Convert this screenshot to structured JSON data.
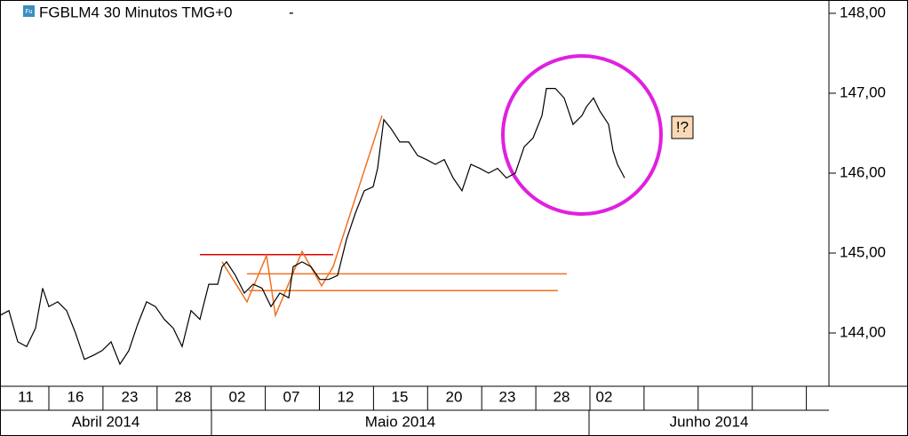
{
  "chart_data": {
    "type": "line",
    "title": "FGBLM4 30 Minutos TMG+0",
    "title_suffix": "-",
    "icon_text": "Fu",
    "annotation": "!?",
    "series": [
      {
        "name": "FGBLM4",
        "color": "#000000",
        "x": [
          0,
          1,
          2,
          3,
          4,
          4.8,
          5.5,
          6.5,
          7.5,
          8.5,
          9.5,
          10.5,
          11.5,
          12.5,
          13.5,
          14.5,
          15.5,
          16.5,
          17.5,
          18.5,
          19.5,
          20.5,
          21.5,
          22.5,
          23.5,
          24.5,
          25,
          25.5,
          26.5,
          27.5,
          28.5,
          29.5,
          30.5,
          31.5,
          32.5,
          33,
          34,
          35,
          36,
          37,
          38,
          39,
          40,
          41,
          42,
          42.5,
          43.2,
          44,
          45,
          46,
          47,
          48,
          49,
          50,
          51,
          52,
          53,
          54,
          55,
          56,
          57,
          58,
          59,
          60,
          61,
          61.5,
          62.5,
          63.5,
          64.5,
          65.5,
          66,
          66.8,
          67.5,
          68.5,
          69,
          69.5,
          70.3
        ],
        "values": [
          144.22,
          144.28,
          143.89,
          143.83,
          144.06,
          144.56,
          144.33,
          144.39,
          144.28,
          144.0,
          143.67,
          143.72,
          143.78,
          143.89,
          143.61,
          143.78,
          144.11,
          144.39,
          144.33,
          144.17,
          144.06,
          143.83,
          144.28,
          144.17,
          144.61,
          144.61,
          144.83,
          144.89,
          144.72,
          144.5,
          144.61,
          144.56,
          144.33,
          144.5,
          144.44,
          144.83,
          144.89,
          144.83,
          144.67,
          144.67,
          144.72,
          145.17,
          145.5,
          145.78,
          145.83,
          146.06,
          146.67,
          146.56,
          146.39,
          146.39,
          146.22,
          146.17,
          146.11,
          146.17,
          145.94,
          145.78,
          146.11,
          146.06,
          146.0,
          146.06,
          145.94,
          146.0,
          146.33,
          146.44,
          146.72,
          147.06,
          147.06,
          146.94,
          146.61,
          146.72,
          146.83,
          146.94,
          146.78,
          146.61,
          146.28,
          146.11,
          145.94
        ]
      }
    ],
    "hlines": [
      {
        "value": 144.98,
        "x": [
          22.5,
          37.5
        ],
        "color": "#e00000"
      },
      {
        "value": 144.74,
        "x": [
          27.8,
          63.8
        ],
        "color": "#f07020"
      },
      {
        "value": 144.53,
        "x": [
          28,
          62.8
        ],
        "color": "#f07020"
      }
    ],
    "trendline": {
      "color": "#f07020",
      "x": [
        25,
        27.8,
        30,
        31,
        34,
        36.2,
        37.5,
        43
      ],
      "values": [
        144.89,
        144.39,
        144.97,
        144.22,
        145.02,
        144.59,
        144.83,
        146.72
      ]
    },
    "xlim": [
      0,
      93.3
    ],
    "xticks": [
      {
        "value": 2.9,
        "label": "11"
      },
      {
        "value": 8.5,
        "label": "16"
      },
      {
        "value": 14.6,
        "label": "23"
      },
      {
        "value": 20.6,
        "label": "28"
      },
      {
        "value": 26.7,
        "label": "02"
      },
      {
        "value": 32.8,
        "label": "07"
      },
      {
        "value": 38.9,
        "label": "12"
      },
      {
        "value": 45.0,
        "label": "15"
      },
      {
        "value": 51.1,
        "label": "20"
      },
      {
        "value": 57.1,
        "label": "23"
      },
      {
        "value": 63.2,
        "label": "28"
      },
      {
        "value": 68.0,
        "label": "02"
      }
    ],
    "month_ticks": [
      {
        "value": 0,
        "label": "Abril 2014"
      },
      {
        "value": 23.8,
        "label": "Maio 2014"
      },
      {
        "value": 66.3,
        "label": "Junho 2014"
      }
    ],
    "ylim": [
      143.3333,
      148.1667
    ],
    "yticks": [
      {
        "value": 144,
        "label": "144,00"
      },
      {
        "value": 145,
        "label": "145,00"
      },
      {
        "value": 146,
        "label": "146,00"
      },
      {
        "value": 147,
        "label": "147,00"
      },
      {
        "value": 148,
        "label": "148,00"
      }
    ]
  }
}
